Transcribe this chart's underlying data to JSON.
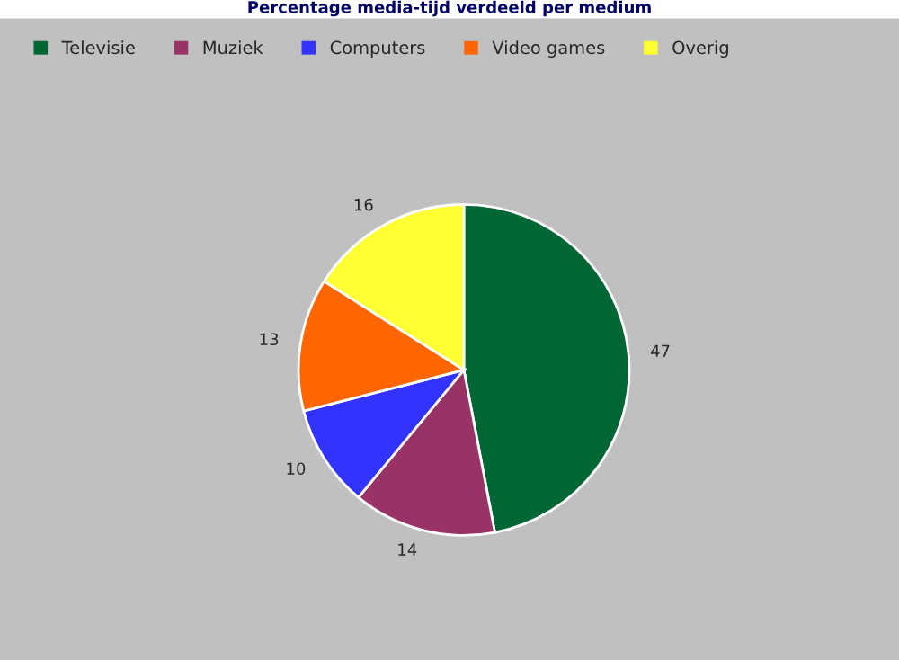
{
  "chart_data": {
    "type": "pie",
    "title": "Percentage media-tijd verdeeld per medium",
    "categories": [
      "Televisie",
      "Muziek",
      "Computers",
      "Video games",
      "Overig"
    ],
    "values": [
      47,
      14,
      10,
      13,
      16
    ],
    "colors": [
      "#006633",
      "#993366",
      "#3333ff",
      "#ff6600",
      "#ffff33"
    ],
    "data_labels": true,
    "legend": "top left"
  }
}
